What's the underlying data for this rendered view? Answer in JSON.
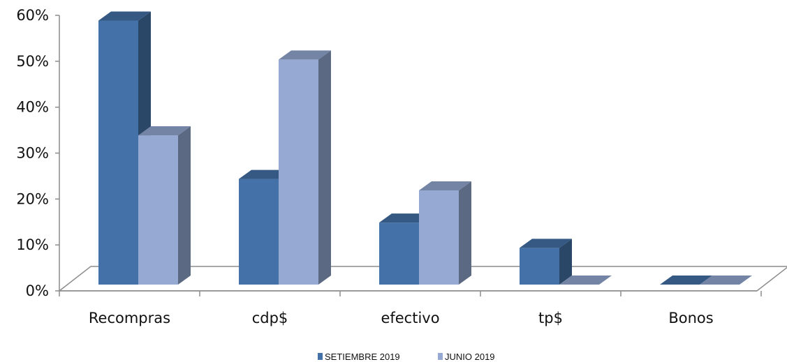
{
  "chart_data": {
    "type": "bar",
    "categories": [
      "Recompras",
      "cdp$",
      "efectivo",
      "tp$",
      "Bonos"
    ],
    "series": [
      {
        "name": "SETIEMBRE 2019",
        "values": [
          57.5,
          23,
          13.5,
          8,
          0
        ],
        "color": "#4472a8"
      },
      {
        "name": "JUNIO 2019",
        "values": [
          32.5,
          49,
          20.5,
          0,
          0
        ],
        "color": "#95a9d3"
      }
    ],
    "ylim": [
      0,
      60
    ],
    "yticks": [
      "0%",
      "10%",
      "20%",
      "30%",
      "40%",
      "50%",
      "60%"
    ],
    "title": "",
    "xlabel": "",
    "ylabel": "",
    "legend": "bottom-center",
    "style": "3d-clustered-column"
  }
}
